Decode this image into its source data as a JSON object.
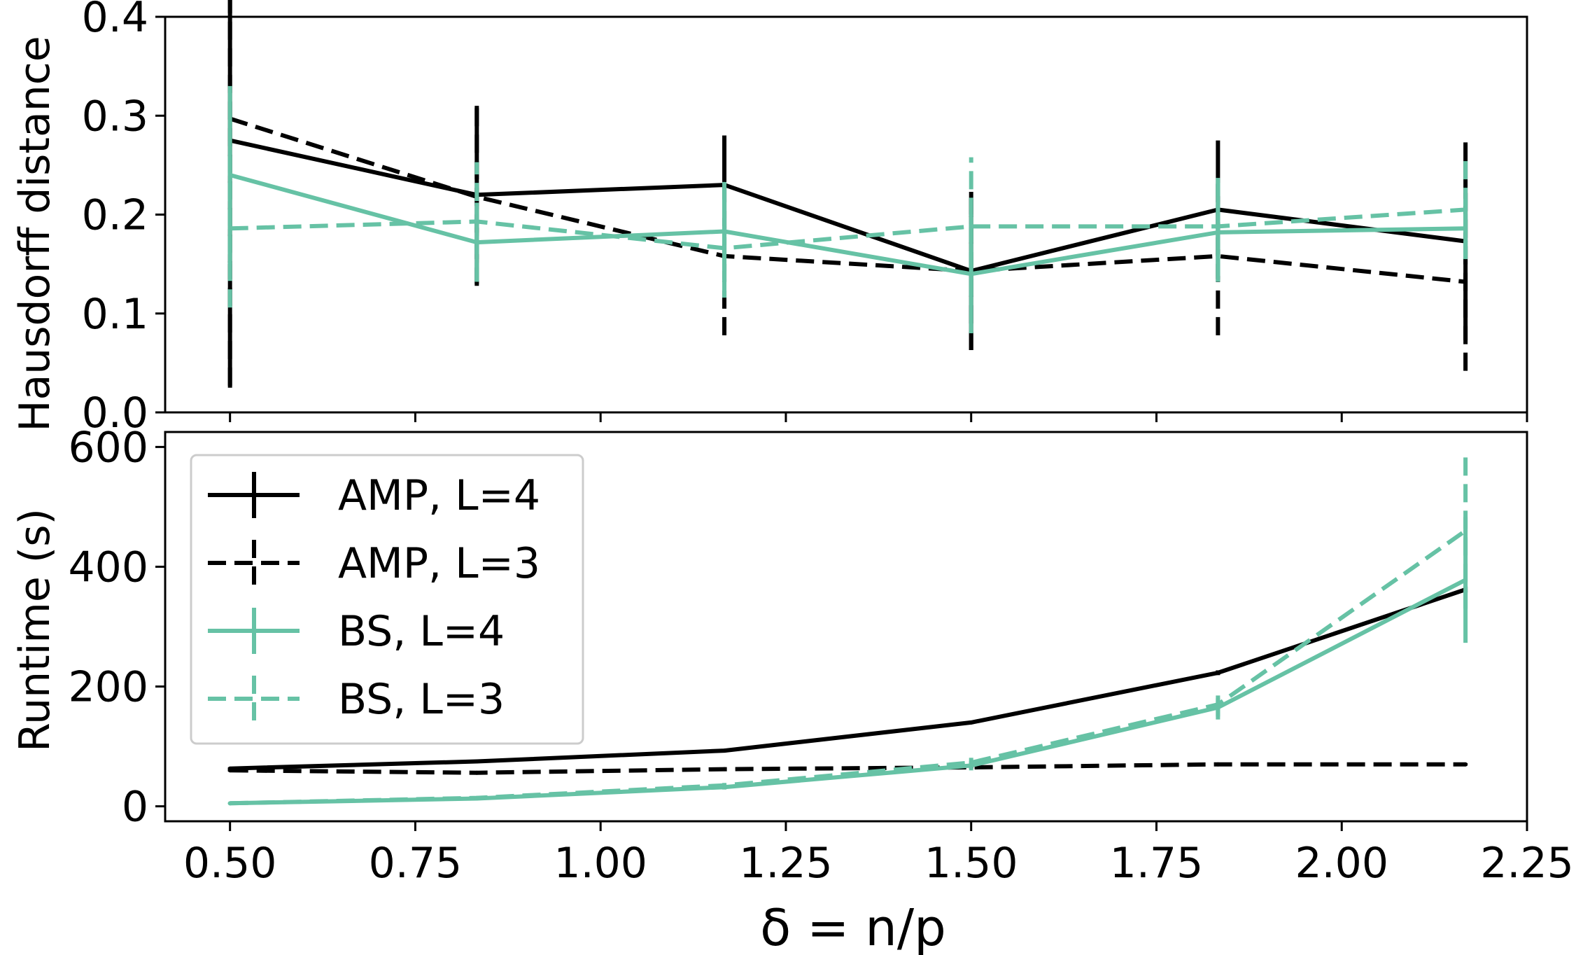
{
  "chart_data": [
    {
      "type": "line",
      "title": "",
      "xlabel": "",
      "ylabel": "Hausdorff distance",
      "ylim": [
        0,
        0.4
      ],
      "xlim": [
        0.4125,
        2.25
      ],
      "yticks": [
        0.0,
        0.1,
        0.2,
        0.3,
        0.4
      ],
      "ytick_labels": [
        "0.0",
        "0.1",
        "0.2",
        "0.3",
        "0.4"
      ],
      "grid": false,
      "x": [
        0.5,
        0.833,
        1.167,
        1.5,
        1.833,
        2.167
      ],
      "series": [
        {
          "name": "AMP, L=4",
          "color": "#000000",
          "dash": "solid",
          "values": [
            0.275,
            0.22,
            0.23,
            0.143,
            0.205,
            0.173
          ],
          "errors": [
            0.25,
            0.09,
            0.05,
            0.08,
            0.07,
            0.1
          ]
        },
        {
          "name": "AMP, L=3",
          "color": "#000000",
          "dash": "dashed",
          "values": [
            0.297,
            0.218,
            0.158,
            0.143,
            0.158,
            0.132
          ],
          "errors": [
            0.27,
            0.09,
            0.08,
            0.08,
            0.08,
            0.09
          ]
        },
        {
          "name": "BS, L=4",
          "color": "#66c2a5",
          "dash": "solid",
          "values": [
            0.24,
            0.172,
            0.183,
            0.14,
            0.182,
            0.186
          ],
          "errors": [
            0.09,
            0.04,
            0.05,
            0.06,
            0.05,
            0.03
          ]
        },
        {
          "name": "BS, L=3",
          "color": "#66c2a5",
          "dash": "dashed",
          "values": [
            0.186,
            0.193,
            0.166,
            0.188,
            0.188,
            0.205
          ],
          "errors": [
            0.08,
            0.06,
            0.05,
            0.07,
            0.05,
            0.05
          ]
        }
      ]
    },
    {
      "type": "line",
      "title": "",
      "xlabel": "δ = n/p",
      "ylabel": "Runtime (s)",
      "ylim": [
        -25,
        625
      ],
      "xlim": [
        0.4125,
        2.25
      ],
      "yticks": [
        0,
        200,
        400,
        600
      ],
      "ytick_labels": [
        "0",
        "200",
        "400",
        "600"
      ],
      "xticks": [
        0.5,
        0.75,
        1.0,
        1.25,
        1.5,
        1.75,
        2.0,
        2.25
      ],
      "xtick_labels": [
        "0.50",
        "0.75",
        "1.00",
        "1.25",
        "1.50",
        "1.75",
        "2.00",
        "2.25"
      ],
      "grid": false,
      "legend_position": "top-left",
      "x": [
        0.5,
        0.833,
        1.167,
        1.5,
        1.833,
        2.167
      ],
      "series": [
        {
          "name": "AMP, L=4",
          "color": "#000000",
          "dash": "solid",
          "values": [
            63,
            75,
            93,
            140,
            223,
            362
          ],
          "errors": [
            2,
            2,
            3,
            3,
            4,
            5
          ]
        },
        {
          "name": "AMP, L=3",
          "color": "#000000",
          "dash": "dashed",
          "values": [
            60,
            56,
            62,
            65,
            70,
            70
          ],
          "errors": [
            2,
            2,
            2,
            2,
            2,
            2
          ]
        },
        {
          "name": "BS, L=4",
          "color": "#66c2a5",
          "dash": "solid",
          "values": [
            5,
            13,
            32,
            68,
            165,
            378
          ],
          "errors": [
            1,
            2,
            4,
            8,
            20,
            105
          ]
        },
        {
          "name": "BS, L=3",
          "color": "#66c2a5",
          "dash": "dashed",
          "values": [
            5,
            14,
            35,
            73,
            170,
            460
          ],
          "errors": [
            1,
            2,
            4,
            8,
            20,
            130
          ]
        }
      ]
    }
  ]
}
